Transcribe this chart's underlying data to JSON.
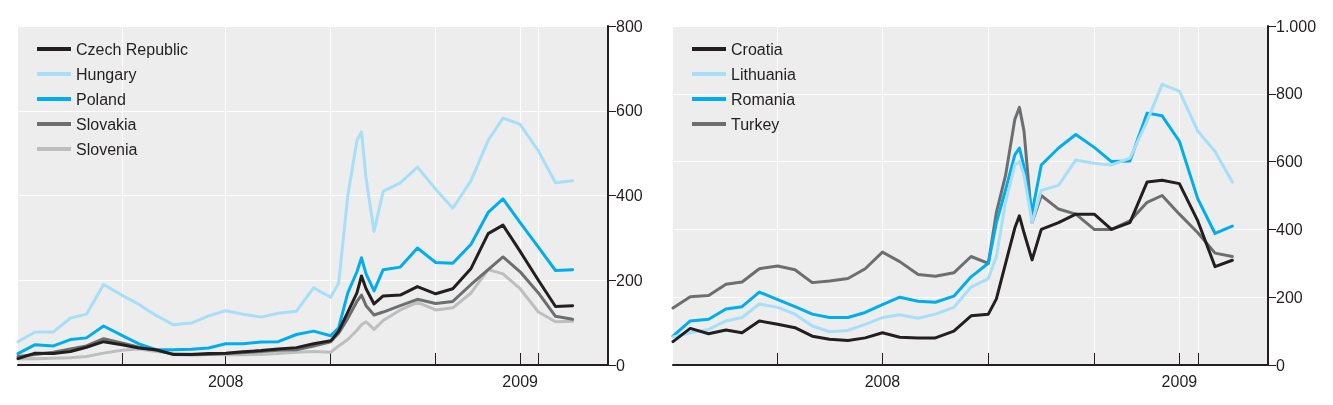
{
  "chart_data": [
    {
      "type": "line",
      "legend": "top left",
      "grid": true,
      "x": [
        "2008-01-01",
        "2008-01-16",
        "2008-02-01",
        "2008-02-16",
        "2008-03-01",
        "2008-03-16",
        "2008-04-01",
        "2008-04-16",
        "2008-05-01",
        "2008-05-16",
        "2008-06-01",
        "2008-06-16",
        "2008-07-01",
        "2008-07-16",
        "2008-08-01",
        "2008-08-16",
        "2008-09-01",
        "2008-09-16",
        "2008-10-01",
        "2008-10-08",
        "2008-10-16",
        "2008-10-24",
        "2008-10-28",
        "2008-11-01",
        "2008-11-08",
        "2008-11-16",
        "2008-12-01",
        "2008-12-16",
        "2009-01-01",
        "2009-01-16",
        "2009-02-01",
        "2009-02-16",
        "2009-03-01",
        "2009-03-16",
        "2009-04-01",
        "2009-04-16",
        "2009-05-01"
      ],
      "xlim": [
        "2008-01-01",
        "2009-06-01"
      ],
      "xticks": [
        {
          "value": "2008-04-01",
          "label": null
        },
        {
          "value": "2008-07-01",
          "label": "2008"
        },
        {
          "value": "2008-10-01",
          "label": null
        },
        {
          "value": "2009-01-01",
          "label": null
        },
        {
          "value": "2009-03-16",
          "label": "2009"
        },
        {
          "value": "2009-04-01",
          "label": null
        }
      ],
      "ylim": [
        0,
        800
      ],
      "yticks": [
        0,
        200,
        400,
        600,
        800
      ],
      "series": [
        {
          "name": "Czech Republic",
          "color": "#231f20",
          "values": [
            15,
            28,
            27,
            32,
            42,
            55,
            48,
            40,
            36,
            25,
            25,
            27,
            28,
            31,
            34,
            38,
            41,
            50,
            57,
            80,
            125,
            170,
            210,
            180,
            144,
            163,
            165,
            185,
            168,
            180,
            228,
            310,
            330,
            268,
            200,
            138,
            140
          ]
        },
        {
          "name": "Hungary",
          "color": "#a6dff7",
          "values": [
            55,
            78,
            78,
            111,
            120,
            190,
            165,
            143,
            117,
            95,
            99,
            116,
            128,
            120,
            113,
            122,
            127,
            182,
            160,
            193,
            400,
            530,
            550,
            440,
            315,
            410,
            430,
            467,
            415,
            370,
            435,
            530,
            583,
            568,
            505,
            430,
            435
          ]
        },
        {
          "name": "Poland",
          "color": "#00aeef",
          "values": [
            27,
            48,
            45,
            60,
            64,
            92,
            70,
            50,
            36,
            36,
            37,
            40,
            50,
            50,
            54,
            55,
            72,
            80,
            69,
            88,
            170,
            220,
            253,
            215,
            175,
            225,
            231,
            276,
            242,
            240,
            285,
            360,
            392,
            336,
            278,
            223,
            225
          ]
        },
        {
          "name": "Slovakia",
          "color": "#6d6e70",
          "values": [
            20,
            25,
            30,
            38,
            45,
            62,
            52,
            42,
            35,
            25,
            24,
            25,
            27,
            29,
            32,
            35,
            36,
            45,
            55,
            75,
            110,
            150,
            165,
            140,
            118,
            125,
            140,
            155,
            145,
            150,
            190,
            225,
            255,
            220,
            170,
            115,
            108
          ]
        },
        {
          "name": "Slovenia",
          "color": "#bcbec0",
          "values": [
            15,
            15,
            16,
            17,
            20,
            28,
            35,
            38,
            32,
            28,
            26,
            25,
            24,
            24,
            25,
            27,
            30,
            32,
            30,
            45,
            60,
            82,
            95,
            102,
            84,
            105,
            130,
            148,
            130,
            135,
            170,
            225,
            215,
            180,
            125,
            102,
            103
          ]
        }
      ]
    },
    {
      "type": "line",
      "legend": "top left",
      "grid": true,
      "x": [
        "2008-01-01",
        "2008-01-16",
        "2008-02-01",
        "2008-02-16",
        "2008-03-01",
        "2008-03-16",
        "2008-04-01",
        "2008-04-16",
        "2008-05-01",
        "2008-05-16",
        "2008-06-01",
        "2008-06-16",
        "2008-07-01",
        "2008-07-16",
        "2008-08-01",
        "2008-08-16",
        "2008-09-01",
        "2008-09-16",
        "2008-10-01",
        "2008-10-08",
        "2008-10-16",
        "2008-10-24",
        "2008-10-28",
        "2008-11-01",
        "2008-11-08",
        "2008-11-16",
        "2008-12-01",
        "2008-12-16",
        "2009-01-01",
        "2009-01-16",
        "2009-02-01",
        "2009-02-16",
        "2009-03-01",
        "2009-03-16",
        "2009-04-01",
        "2009-04-16",
        "2009-05-01"
      ],
      "xlim": [
        "2008-01-01",
        "2009-06-01"
      ],
      "xticks": [
        {
          "value": "2008-04-01",
          "label": null
        },
        {
          "value": "2008-07-01",
          "label": "2008"
        },
        {
          "value": "2008-10-01",
          "label": null
        },
        {
          "value": "2009-01-01",
          "label": null
        },
        {
          "value": "2009-03-16",
          "label": "2009"
        },
        {
          "value": "2009-04-01",
          "label": null
        }
      ],
      "ylim": [
        0,
        1000
      ],
      "yticks": [
        0,
        200,
        400,
        600,
        800,
        {
          "value": 1000,
          "label": "1.000"
        }
      ],
      "series": [
        {
          "name": "Croatia",
          "color": "#231f20",
          "values": [
            69,
            108,
            92,
            103,
            95,
            130,
            120,
            110,
            85,
            76,
            72,
            80,
            95,
            82,
            80,
            80,
            100,
            145,
            150,
            195,
            300,
            404,
            440,
            390,
            310,
            400,
            420,
            445,
            445,
            400,
            420,
            540,
            545,
            535,
            425,
            290,
            309
          ]
        },
        {
          "name": "Lithuania",
          "color": "#a6dff7",
          "values": [
            83,
            95,
            105,
            130,
            140,
            180,
            170,
            150,
            115,
            98,
            102,
            120,
            140,
            148,
            138,
            150,
            170,
            230,
            255,
            320,
            480,
            590,
            600,
            560,
            420,
            515,
            530,
            605,
            595,
            590,
            610,
            720,
            828,
            808,
            690,
            630,
            540
          ]
        },
        {
          "name": "Romania",
          "color": "#00aeef",
          "values": [
            85,
            130,
            135,
            165,
            172,
            215,
            193,
            172,
            150,
            140,
            140,
            155,
            178,
            200,
            188,
            185,
            203,
            260,
            300,
            420,
            517,
            620,
            640,
            585,
            450,
            590,
            640,
            680,
            642,
            600,
            602,
            743,
            735,
            660,
            490,
            388,
            410
          ]
        },
        {
          "name": "Turkey",
          "color": "#6d6e70",
          "values": [
            168,
            201,
            205,
            238,
            245,
            284,
            292,
            281,
            243,
            248,
            255,
            284,
            333,
            305,
            267,
            262,
            272,
            320,
            300,
            450,
            560,
            724,
            760,
            690,
            420,
            500,
            460,
            445,
            400,
            400,
            425,
            480,
            500,
            445,
            390,
            330,
            320
          ]
        }
      ]
    }
  ]
}
